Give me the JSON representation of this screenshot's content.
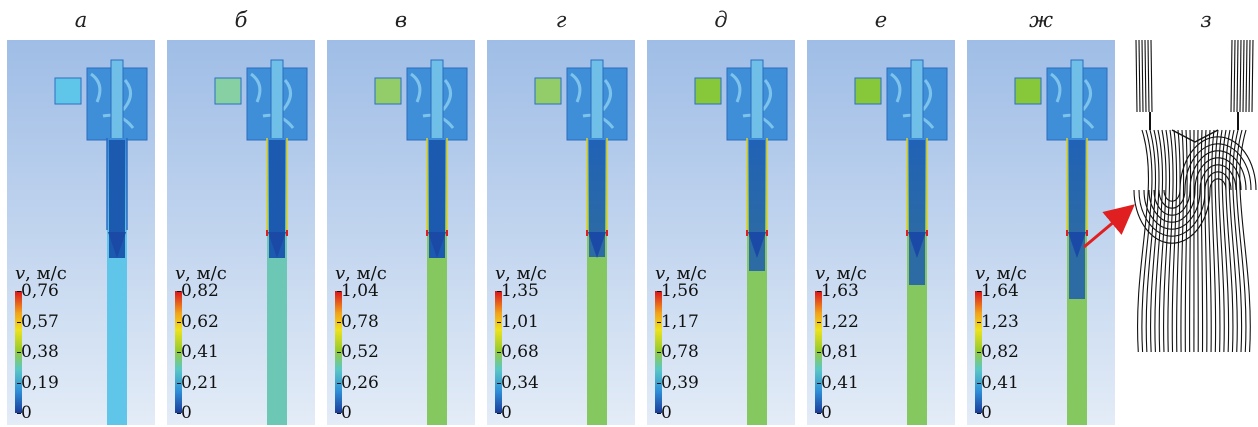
{
  "panels": [
    {
      "letter": "а",
      "unit_label": "м/с",
      "var_symbol": "v",
      "ticks": [
        "0,76",
        "0,57",
        "0,38",
        "0,19",
        "0"
      ],
      "inlet_color": "#5fc6ea",
      "tube_color": "#5fc6ea"
    },
    {
      "letter": "б",
      "unit_label": "м/с",
      "var_symbol": "v",
      "ticks": [
        "0,82",
        "0,62",
        "0,41",
        "0,21",
        "0"
      ],
      "inlet_color": "#87d0a4",
      "tube_color": "#6cc7b4"
    },
    {
      "letter": "в",
      "unit_label": "м/с",
      "var_symbol": "v",
      "ticks": [
        "1,04",
        "0,78",
        "0,52",
        "0,26",
        "0"
      ],
      "inlet_color": "#93cd6a",
      "tube_color": "#86c860"
    },
    {
      "letter": "г",
      "unit_label": "м/с",
      "var_symbol": "v",
      "ticks": [
        "1,35",
        "1,01",
        "0,68",
        "0,34",
        "0"
      ],
      "inlet_color": "#93cd6a",
      "tube_color": "#86c860"
    },
    {
      "letter": "д",
      "unit_label": "м/с",
      "var_symbol": "v",
      "ticks": [
        "1,56",
        "1,17",
        "0,78",
        "0,39",
        "0"
      ],
      "inlet_color": "#86c83a",
      "tube_color": "#86c860"
    },
    {
      "letter": "е",
      "unit_label": "м/с",
      "var_symbol": "v",
      "ticks": [
        "1,63",
        "1,22",
        "0,81",
        "0,41",
        "0"
      ],
      "inlet_color": "#86c83a",
      "tube_color": "#86c860"
    },
    {
      "letter": "ж",
      "unit_label": "м/с",
      "var_symbol": "v",
      "ticks": [
        "1,64",
        "1,23",
        "0,82",
        "0,41",
        "0"
      ],
      "inlet_color": "#86c83a",
      "tube_color": "#86c860"
    }
  ],
  "detail_panel": {
    "letter": "з"
  },
  "colors": {
    "background_sim": "#b8d0ec",
    "housing": "#3f8fd8",
    "core": "#1c5ab0",
    "arrow": "#e02020"
  }
}
